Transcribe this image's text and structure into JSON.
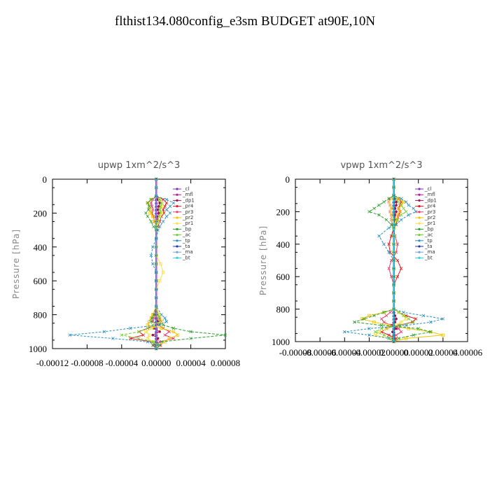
{
  "title": "flthist134.080config_e3sm  BUDGET at90E,10N",
  "colors": {
    "cl": "#7b2fbf",
    "mfl": "#b5179e",
    "dp1": "#a0144f",
    "pr4": "#e3171d",
    "pr3": "#e43d6f",
    "pr2": "#f2c300",
    "pr1": "#f6e04b",
    "bp": "#2e9e2e",
    "ac": "#6fcf2c",
    "tp": "#2a8fbd",
    "ta": "#2438b8",
    "ma": "#7aa0d8",
    "bt": "#2ad4e6"
  },
  "chart_data": [
    {
      "type": "line",
      "title": "upwp   1xm^2/s^3",
      "ylabel": "Pressure [hPa]",
      "xlim": [
        -0.00012,
        8e-05
      ],
      "ylim": [
        1000,
        0
      ],
      "xticks": [
        "-0.00012",
        "-0.00008",
        "-0.00004",
        "0.00000",
        "0.00004",
        "0.00008"
      ],
      "yticks": [
        "0",
        "200",
        "400",
        "600",
        "800",
        "1000"
      ],
      "legend": "top-right",
      "pressure": [
        0,
        50,
        100,
        120,
        140,
        160,
        180,
        200,
        220,
        250,
        280,
        300,
        350,
        400,
        450,
        500,
        550,
        600,
        650,
        700,
        750,
        800,
        820,
        840,
        860,
        880,
        900,
        920,
        940,
        960,
        980,
        1000
      ],
      "series": [
        {
          "name": "_cl",
          "values": [
            0,
            0,
            0,
            0,
            0,
            0,
            0,
            0,
            0,
            0,
            0,
            0,
            0,
            0,
            0,
            0,
            0,
            0,
            0,
            0,
            0,
            0,
            0,
            0,
            0,
            0,
            0,
            0,
            0,
            0,
            0,
            0
          ]
        },
        {
          "name": "_mfl",
          "values": [
            0,
            0,
            0,
            0,
            0,
            0,
            0,
            0,
            0,
            0,
            0,
            0,
            0,
            0,
            0,
            0,
            0,
            0,
            0,
            0,
            0,
            0,
            0,
            0,
            0,
            0,
            0,
            0,
            0,
            0,
            0,
            0
          ]
        },
        {
          "name": "_dp1",
          "values": [
            0,
            0,
            0,
            2e-06,
            4e-06,
            3e-06,
            2e-06,
            3e-06,
            2e-06,
            1e-06,
            0,
            0,
            0,
            0,
            0,
            0,
            0,
            0,
            0,
            0,
            0,
            0,
            0,
            2e-06,
            0,
            -3e-06,
            4e-06,
            -4e-06,
            2e-06,
            0,
            0,
            0
          ]
        },
        {
          "name": "_pr4",
          "values": [
            0,
            0,
            0,
            8e-06,
            1.2e-05,
            1e-05,
            8e-06,
            9e-06,
            6e-06,
            4e-06,
            2e-06,
            0,
            0,
            0,
            0,
            0,
            0,
            0,
            0,
            0,
            0,
            2e-06,
            4e-06,
            6e-06,
            3e-06,
            -1e-05,
            -2e-05,
            -1.5e-05,
            -3e-05,
            -5e-06,
            5e-06,
            0
          ]
        },
        {
          "name": "_pr3",
          "values": [
            0,
            0,
            0,
            -4e-06,
            -6e-06,
            -5e-06,
            -4e-06,
            -5e-06,
            -3e-06,
            -2e-06,
            0,
            0,
            0,
            0,
            0,
            0,
            0,
            0,
            0,
            0,
            0,
            -2e-06,
            -3e-06,
            -4e-06,
            2e-06,
            8e-06,
            1.5e-05,
            1e-05,
            2e-05,
            4e-06,
            -3e-06,
            0
          ]
        },
        {
          "name": "_pr2",
          "values": [
            0,
            0,
            0,
            -6e-06,
            -1e-05,
            -8e-06,
            -6e-06,
            -7e-06,
            -4e-06,
            -2e-06,
            0,
            0,
            0,
            0,
            0,
            0,
            0,
            0,
            0,
            0,
            0,
            -4e-06,
            -6e-06,
            -8e-06,
            -1e-05,
            6e-06,
            2e-05,
            2.5e-05,
            1.5e-05,
            1e-05,
            3e-06,
            0
          ]
        },
        {
          "name": "_pr1",
          "values": [
            0,
            0,
            0,
            4e-06,
            7e-06,
            6e-06,
            5e-06,
            6e-06,
            4e-06,
            2e-06,
            0,
            0,
            0,
            0,
            0,
            5e-06,
            8e-06,
            4e-06,
            0,
            0,
            0,
            3e-06,
            5e-06,
            7e-06,
            4e-06,
            -5e-06,
            -1.2e-05,
            -8e-06,
            -1e-05,
            -4e-06,
            2e-06,
            0
          ]
        },
        {
          "name": "_bp",
          "values": [
            0,
            0,
            0,
            -6e-06,
            -1e-05,
            -8e-06,
            -9e-06,
            -1.2e-05,
            -1e-05,
            -6e-06,
            -3e-06,
            0,
            0,
            0,
            0,
            0,
            0,
            0,
            0,
            0,
            0,
            -3e-06,
            -5e-06,
            -6e-06,
            8e-06,
            2e-05,
            4e-05,
            8e-05,
            4e-05,
            6e-06,
            -4e-06,
            0
          ]
        },
        {
          "name": "_ac",
          "values": [
            0,
            0,
            0,
            4e-06,
            6e-06,
            5e-06,
            4e-06,
            5e-06,
            3e-06,
            2e-06,
            0,
            0,
            0,
            0,
            0,
            0,
            0,
            0,
            0,
            0,
            0,
            2e-06,
            3e-06,
            4e-06,
            -4e-06,
            -1e-05,
            -2e-05,
            -4e-05,
            -2e-05,
            -3e-06,
            2e-06,
            0
          ]
        },
        {
          "name": "_tp",
          "values": [
            0,
            0,
            0,
            1.2e-05,
            2e-05,
            1.6e-05,
            1.2e-05,
            1.6e-05,
            1.2e-05,
            8e-06,
            4e-06,
            2e-06,
            0,
            -4e-06,
            -6e-06,
            -4e-06,
            0,
            0,
            0,
            0,
            0,
            6e-06,
            1e-05,
            1.2e-05,
            4e-06,
            -3e-05,
            -6e-05,
            -0.0001,
            -5e-05,
            -1e-05,
            4e-06,
            0
          ]
        },
        {
          "name": "_ta",
          "values": [
            0,
            0,
            0,
            0,
            0,
            0,
            0,
            0,
            0,
            0,
            0,
            0,
            0,
            0,
            0,
            0,
            0,
            0,
            0,
            0,
            0,
            0,
            0,
            0,
            0,
            0,
            0,
            0,
            0,
            0,
            0,
            0
          ]
        },
        {
          "name": "_ma",
          "values": [
            0,
            0,
            0,
            0,
            0,
            0,
            0,
            0,
            0,
            0,
            0,
            0,
            0,
            0,
            0,
            0,
            0,
            0,
            0,
            0,
            0,
            0,
            0,
            0,
            0,
            0,
            0,
            0,
            0,
            0,
            0,
            0
          ]
        },
        {
          "name": "_bt",
          "values": [
            0,
            0,
            0,
            0,
            0,
            0,
            0,
            0,
            0,
            0,
            0,
            0,
            0,
            0,
            0,
            0,
            0,
            0,
            0,
            0,
            0,
            0,
            0,
            0,
            0,
            0,
            0,
            0,
            0,
            0,
            0,
            0
          ]
        }
      ]
    },
    {
      "type": "line",
      "title": "vpwp   1xm^2/s^3",
      "ylabel": "Pressure [hPa]",
      "xlim": [
        -8e-05,
        6e-05
      ],
      "ylim": [
        1000,
        0
      ],
      "xticks": [
        "-0.00008",
        "-0.00006",
        "-0.00004",
        "-0.00002",
        "0.00000",
        "0.00002",
        "0.00004",
        "0.00006"
      ],
      "yticks": [
        "0",
        "200",
        "400",
        "600",
        "800",
        "1000"
      ],
      "legend": "top-right",
      "pressure": [
        0,
        50,
        100,
        120,
        140,
        160,
        180,
        200,
        220,
        250,
        280,
        300,
        350,
        400,
        450,
        500,
        550,
        600,
        650,
        700,
        750,
        800,
        820,
        840,
        860,
        880,
        900,
        920,
        940,
        960,
        980,
        1000
      ],
      "series": [
        {
          "name": "_cl",
          "values": [
            0,
            0,
            0,
            0,
            0,
            0,
            0,
            0,
            0,
            0,
            0,
            0,
            0,
            0,
            0,
            0,
            0,
            0,
            0,
            0,
            0,
            0,
            0,
            0,
            0,
            0,
            0,
            0,
            0,
            0,
            0,
            0
          ]
        },
        {
          "name": "_mfl",
          "values": [
            0,
            0,
            0,
            0,
            0,
            0,
            0,
            0,
            0,
            0,
            0,
            0,
            0,
            0,
            0,
            0,
            0,
            0,
            0,
            0,
            0,
            0,
            0,
            0,
            0,
            0,
            0,
            0,
            0,
            0,
            0,
            0
          ]
        },
        {
          "name": "_dp1",
          "values": [
            0,
            0,
            0,
            1e-06,
            2e-06,
            2e-06,
            1e-06,
            2e-06,
            1e-06,
            1e-06,
            0,
            0,
            0,
            0,
            0,
            0,
            0,
            0,
            0,
            0,
            0,
            0,
            0,
            1e-06,
            2e-06,
            1e-06,
            -2e-06,
            2e-06,
            -1e-06,
            0,
            0,
            0
          ]
        },
        {
          "name": "_pr4",
          "values": [
            0,
            0,
            0,
            4e-06,
            6e-06,
            5e-06,
            4e-06,
            5e-06,
            4e-06,
            3e-06,
            2e-06,
            0,
            -2e-06,
            -4e-06,
            -3e-06,
            3e-06,
            6e-06,
            3e-06,
            0,
            0,
            0,
            0,
            4e-06,
            1e-05,
            1.8e-05,
            1.5e-05,
            4e-06,
            -6e-06,
            -1e-05,
            -4e-06,
            2e-06,
            0
          ]
        },
        {
          "name": "_pr3",
          "values": [
            0,
            0,
            0,
            -3e-06,
            -4e-06,
            -3e-06,
            -2e-06,
            -3e-06,
            -2e-06,
            -2e-06,
            -1e-06,
            0,
            1e-06,
            3e-06,
            2e-06,
            -2e-06,
            -4e-06,
            -2e-06,
            0,
            0,
            0,
            0,
            -3e-06,
            -6e-06,
            -1e-05,
            -8e-06,
            -2e-06,
            4e-06,
            6e-06,
            2e-06,
            -1e-06,
            0
          ]
        },
        {
          "name": "_pr2",
          "values": [
            0,
            0,
            0,
            4e-06,
            8e-06,
            6e-06,
            4e-06,
            5e-06,
            3e-06,
            2e-06,
            0,
            0,
            0,
            0,
            0,
            0,
            0,
            0,
            0,
            0,
            0,
            0,
            -8e-06,
            -2e-05,
            -2.6e-05,
            -1.6e-05,
            -4e-06,
            1.2e-05,
            3e-05,
            4e-05,
            1e-05,
            0
          ]
        },
        {
          "name": "_pr1",
          "values": [
            0,
            0,
            0,
            -2e-06,
            -4e-06,
            -3e-06,
            -2e-06,
            -3e-06,
            -2e-06,
            -1e-06,
            0,
            0,
            0,
            0,
            0,
            0,
            0,
            0,
            0,
            0,
            0,
            0,
            4e-06,
            8e-06,
            1e-05,
            6e-06,
            2e-06,
            -5e-06,
            -1.2e-05,
            -1.5e-05,
            -4e-06,
            0
          ]
        },
        {
          "name": "_bp",
          "values": [
            0,
            0,
            0,
            -4e-06,
            -8e-06,
            -1.2e-05,
            -1.6e-05,
            -2e-05,
            -1.2e-05,
            -6e-06,
            -2e-06,
            0,
            0,
            0,
            0,
            0,
            0,
            0,
            0,
            0,
            0,
            0,
            -8e-06,
            -1.6e-05,
            -2.4e-05,
            -3.2e-05,
            -1e-05,
            2e-05,
            3e-05,
            1.6e-05,
            4e-06,
            0
          ]
        },
        {
          "name": "_ac",
          "values": [
            0,
            0,
            0,
            2e-06,
            4e-06,
            6e-06,
            8e-06,
            1e-05,
            6e-06,
            3e-06,
            1e-06,
            0,
            0,
            0,
            0,
            0,
            0,
            0,
            0,
            0,
            0,
            0,
            4e-06,
            8e-06,
            1.2e-05,
            1.6e-05,
            5e-06,
            -1e-05,
            -1.5e-05,
            -8e-06,
            -2e-06,
            0
          ]
        },
        {
          "name": "_tp",
          "values": [
            0,
            0,
            0,
            6e-06,
            1e-05,
            1.2e-05,
            1.6e-05,
            1.8e-05,
            1.2e-05,
            6e-06,
            2e-06,
            -4e-06,
            -1.2e-05,
            -8e-06,
            -4e-06,
            0,
            0,
            0,
            0,
            0,
            0,
            0,
            8e-06,
            2.4e-05,
            4e-05,
            3e-05,
            1e-05,
            -2e-05,
            -4e-05,
            -2e-05,
            -4e-06,
            0
          ]
        },
        {
          "name": "_ta",
          "values": [
            0,
            0,
            0,
            0,
            0,
            0,
            0,
            0,
            0,
            0,
            0,
            0,
            0,
            0,
            0,
            0,
            0,
            0,
            0,
            0,
            0,
            0,
            0,
            0,
            0,
            0,
            0,
            0,
            0,
            0,
            0,
            0
          ]
        },
        {
          "name": "_ma",
          "values": [
            0,
            0,
            0,
            0,
            0,
            0,
            0,
            0,
            0,
            0,
            0,
            0,
            0,
            0,
            0,
            0,
            0,
            0,
            0,
            0,
            0,
            0,
            0,
            0,
            0,
            0,
            0,
            0,
            0,
            0,
            0,
            0
          ]
        },
        {
          "name": "_bt",
          "values": [
            0,
            0,
            0,
            0,
            0,
            0,
            0,
            0,
            0,
            0,
            0,
            0,
            0,
            0,
            0,
            0,
            0,
            0,
            0,
            0,
            0,
            0,
            0,
            0,
            0,
            0,
            0,
            0,
            0,
            0,
            0,
            0
          ]
        }
      ]
    }
  ]
}
